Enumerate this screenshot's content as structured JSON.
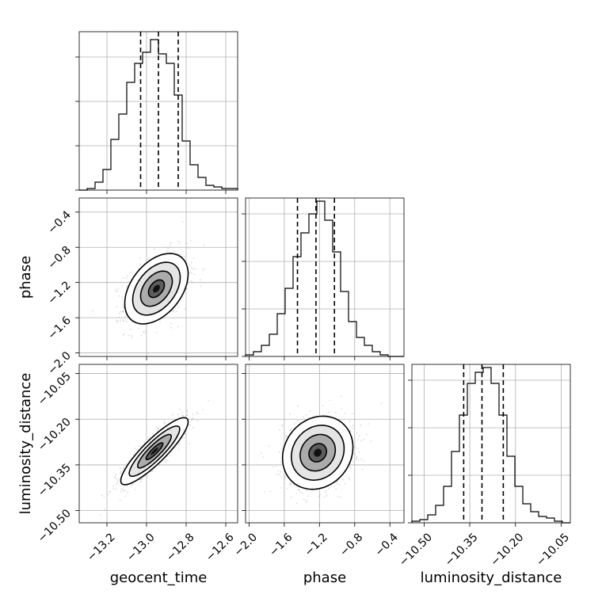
{
  "chart_data": {
    "type": "corner",
    "parameters": [
      {
        "name": "geocent_time",
        "label": "geocent_time",
        "range": [
          -13.34,
          -12.54
        ],
        "ticks": [
          -13.2,
          -13.0,
          -12.8,
          -12.6
        ],
        "tick_labels": [
          "−13.2",
          "−13.0",
          "−12.8",
          "−12.6"
        ],
        "quantiles": [
          -13.03,
          -12.94,
          -12.84
        ],
        "histogram": {
          "bin_edges": [
            -13.34,
            -13.3,
            -13.26,
            -13.22,
            -13.18,
            -13.14,
            -13.1,
            -13.06,
            -13.02,
            -12.98,
            -12.94,
            -12.9,
            -12.86,
            -12.82,
            -12.78,
            -12.74,
            -12.7,
            -12.66,
            -12.62,
            -12.58,
            -12.54
          ],
          "counts": [
            0.0,
            0.01,
            0.05,
            0.13,
            0.32,
            0.48,
            0.68,
            0.8,
            0.87,
            0.95,
            0.86,
            0.8,
            0.6,
            0.31,
            0.16,
            0.08,
            0.03,
            0.02,
            0.01,
            0.01
          ],
          "yticks": [
            0.0,
            0.28,
            0.56,
            0.84
          ]
        }
      },
      {
        "name": "phase",
        "label": "phase",
        "range": [
          -2.04,
          -0.24
        ],
        "ticks": [
          -2.0,
          -1.6,
          -1.2,
          -0.8,
          -0.4
        ],
        "tick_labels": [
          "−2.0",
          "−1.6",
          "−1.2",
          "−0.8",
          "−0.4"
        ],
        "quantiles": [
          -1.45,
          -1.24,
          -1.03
        ],
        "histogram": {
          "bin_edges": [
            -2.04,
            -1.95,
            -1.86,
            -1.77,
            -1.68,
            -1.59,
            -1.5,
            -1.41,
            -1.32,
            -1.23,
            -1.14,
            -1.05,
            -0.96,
            -0.87,
            -0.78,
            -0.69,
            -0.6,
            -0.51,
            -0.42,
            -0.33,
            -0.24
          ],
          "counts": [
            0.01,
            0.03,
            0.07,
            0.14,
            0.27,
            0.43,
            0.63,
            0.78,
            0.9,
            0.98,
            0.86,
            0.66,
            0.41,
            0.22,
            0.12,
            0.07,
            0.03,
            0.01,
            0.0,
            0.0
          ],
          "yticks": [
            0.0,
            0.3,
            0.6,
            0.9
          ]
        }
      },
      {
        "name": "luminosity_distance",
        "label": "luminosity_distance",
        "range": [
          -10.54,
          -10.02
        ],
        "ticks": [
          -10.5,
          -10.35,
          -10.2,
          -10.05
        ],
        "tick_labels": [
          "−10.50",
          "−10.35",
          "−10.20",
          "−10.05"
        ],
        "quantiles": [
          -10.37,
          -10.31,
          -10.24
        ],
        "histogram": {
          "bin_edges": [
            -10.54,
            -10.514,
            -10.488,
            -10.462,
            -10.436,
            -10.41,
            -10.384,
            -10.358,
            -10.332,
            -10.306,
            -10.28,
            -10.254,
            -10.228,
            -10.202,
            -10.176,
            -10.15,
            -10.124,
            -10.098,
            -10.072,
            -10.046,
            -10.02
          ],
          "counts": [
            0.01,
            0.02,
            0.05,
            0.11,
            0.23,
            0.45,
            0.68,
            0.88,
            0.95,
            0.98,
            0.88,
            0.68,
            0.42,
            0.23,
            0.12,
            0.07,
            0.04,
            0.03,
            0.01,
            0.0
          ],
          "yticks": [
            0.0,
            0.3,
            0.6,
            0.9
          ]
        }
      }
    ],
    "joint": [
      {
        "x": "geocent_time",
        "y": "phase",
        "mean": [
          -12.95,
          -1.27
        ],
        "std": [
          0.08,
          0.2
        ],
        "correlation": 0.42,
        "contour_sigmas": [
          0.5,
          1.0,
          1.5,
          2.0
        ],
        "scatter_points": 900
      },
      {
        "x": "geocent_time",
        "y": "luminosity_distance",
        "mean": [
          -12.96,
          -10.305
        ],
        "std": [
          0.085,
          0.055
        ],
        "correlation": 0.88,
        "contour_sigmas": [
          0.5,
          1.0,
          1.5,
          2.0
        ],
        "scatter_points": 900
      },
      {
        "x": "phase",
        "y": "luminosity_distance",
        "mean": [
          -1.22,
          -10.31
        ],
        "std": [
          0.2,
          0.06
        ],
        "correlation": 0.15,
        "contour_sigmas": [
          0.5,
          1.0,
          1.5,
          2.0
        ],
        "scatter_points": 900
      }
    ],
    "grid": true
  }
}
